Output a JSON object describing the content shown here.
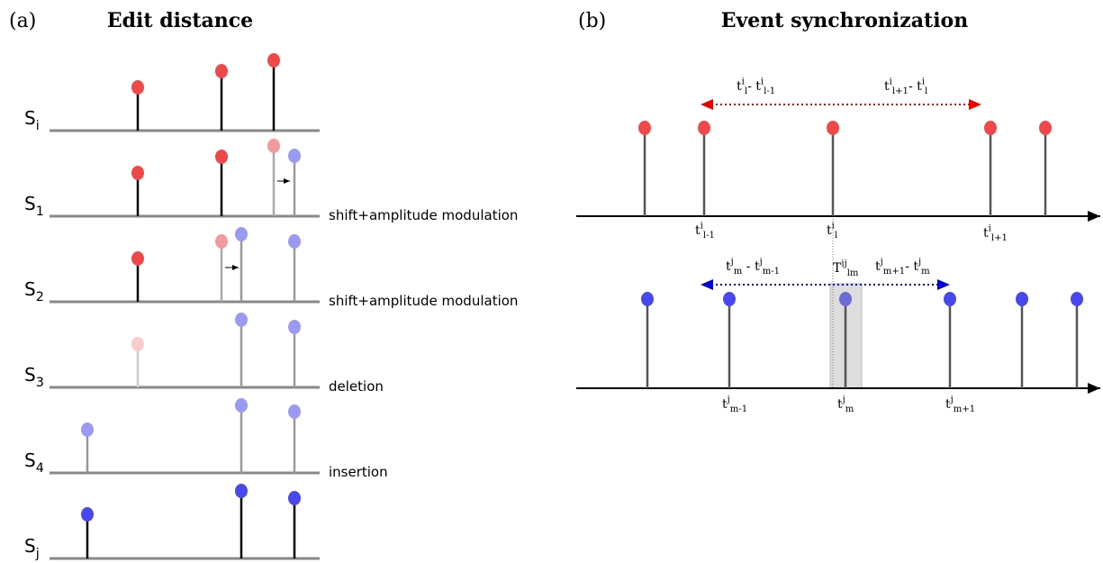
{
  "panel_a": {
    "tag": "(a)",
    "title": "Edit distance",
    "rows": [
      {
        "label": [
          {
            "base": "S",
            "sub": "i"
          }
        ]
      },
      {
        "label": [
          {
            "base": "S",
            "sub": "1"
          }
        ],
        "note": "shift+amplitude modulation"
      },
      {
        "label": [
          {
            "base": "S",
            "sub": "2"
          }
        ],
        "note": "shift+amplitude modulation"
      },
      {
        "label": [
          {
            "base": "S",
            "sub": "3"
          }
        ],
        "note": "deletion"
      },
      {
        "label": [
          {
            "base": "S",
            "sub": "4"
          }
        ],
        "note": "insertion"
      },
      {
        "label": [
          {
            "base": "S",
            "sub": "j"
          }
        ]
      }
    ]
  },
  "panel_b": {
    "tag": "(b)",
    "title": "Event synchronization",
    "top": {
      "interval_labels": [
        [
          {
            "base": "t",
            "sup": "i",
            "sub": "l"
          },
          {
            "base": "- t",
            "sup": "i",
            "sub": "l-1"
          }
        ],
        [
          {
            "base": "t",
            "sup": "i",
            "sub": "l+1"
          },
          {
            "base": "- t",
            "sup": "i",
            "sub": "l"
          }
        ]
      ],
      "tick_labels": [
        [
          {
            "base": "t",
            "sup": "i",
            "sub": "l-1"
          }
        ],
        [
          {
            "base": "t",
            "sup": "i",
            "sub": "l"
          }
        ],
        [
          {
            "base": "t",
            "sup": "i",
            "sub": "l+1"
          }
        ]
      ]
    },
    "bottom": {
      "interval_labels": [
        [
          {
            "base": "t",
            "sup": "j",
            "sub": "m"
          },
          {
            "base": " - t",
            "sup": "j",
            "sub": "m-1"
          }
        ],
        [
          {
            "base": "t",
            "sup": "j",
            "sub": "m+1"
          },
          {
            "base": "- t",
            "sup": "j",
            "sub": "m"
          }
        ]
      ],
      "tick_labels": [
        [
          {
            "base": "t",
            "sup": "j",
            "sub": "m-1"
          }
        ],
        [
          {
            "base": "t",
            "sup": "j",
            "sub": "m"
          }
        ],
        [
          {
            "base": "t",
            "sup": "j",
            "sub": "m+1"
          }
        ]
      ]
    },
    "window_label": [
      {
        "base": "T",
        "sup": "ij",
        "sub": "lm"
      }
    ]
  }
}
